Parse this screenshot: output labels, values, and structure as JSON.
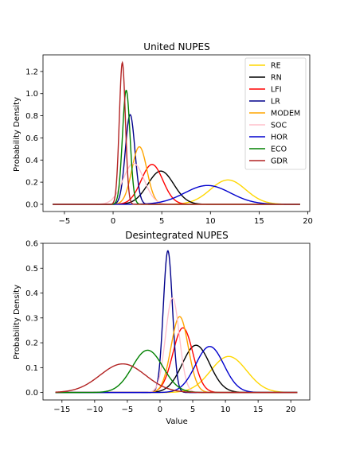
{
  "chart_data": [
    {
      "type": "line",
      "title": "United NUPES",
      "xlabel": "",
      "ylabel": "Probability Density",
      "xlim": [
        -7.2,
        20.2
      ],
      "ylim": [
        -0.065,
        1.35
      ],
      "xticks": [
        -5,
        0,
        5,
        10,
        15,
        20
      ],
      "yticks": [
        0.0,
        0.2,
        0.4,
        0.6,
        0.8,
        1.0,
        1.2
      ],
      "x_range": [
        -6.2,
        19.2
      ],
      "legend": "top-right",
      "series": [
        {
          "name": "RE",
          "color": "#FFD700",
          "mean": 11.8,
          "peak": 0.22
        },
        {
          "name": "RN",
          "color": "#000000",
          "mean": 4.9,
          "peak": 0.3
        },
        {
          "name": "LFI",
          "color": "#FF0000",
          "mean": 4.0,
          "peak": 0.36
        },
        {
          "name": "LR",
          "color": "#00008B",
          "mean": 1.75,
          "peak": 0.81
        },
        {
          "name": "MODEM",
          "color": "#FFA500",
          "mean": 2.7,
          "peak": 0.52
        },
        {
          "name": "SOC",
          "color": "#FFC0CB",
          "mean": 2.1,
          "peak": 0.37
        },
        {
          "name": "HOR",
          "color": "#0000CD",
          "mean": 9.7,
          "peak": 0.17
        },
        {
          "name": "ECO",
          "color": "#008000",
          "mean": 1.35,
          "peak": 1.03
        },
        {
          "name": "GDR",
          "color": "#B22222",
          "mean": 0.95,
          "peak": 1.28
        }
      ]
    },
    {
      "type": "line",
      "title": "Desintegrated NUPES",
      "xlabel": "Value",
      "ylabel": "Probability Density",
      "xlim": [
        -17.9,
        22.9
      ],
      "ylim": [
        -0.03,
        0.6
      ],
      "xticks": [
        -15,
        -10,
        -5,
        0,
        5,
        10,
        15,
        20
      ],
      "yticks": [
        0.0,
        0.1,
        0.2,
        0.3,
        0.4,
        0.5,
        0.6
      ],
      "x_range": [
        -16,
        21
      ],
      "legend": "none",
      "series": [
        {
          "name": "RE",
          "color": "#FFD700",
          "mean": 10.5,
          "peak": 0.145
        },
        {
          "name": "RN",
          "color": "#000000",
          "mean": 5.5,
          "peak": 0.19
        },
        {
          "name": "LFI",
          "color": "#FF0000",
          "mean": 3.5,
          "peak": 0.26
        },
        {
          "name": "LR",
          "color": "#00008B",
          "mean": 1.2,
          "peak": 0.57
        },
        {
          "name": "MODEM",
          "color": "#FFA500",
          "mean": 3.0,
          "peak": 0.305
        },
        {
          "name": "SOC",
          "color": "#FFC0CB",
          "mean": 1.9,
          "peak": 0.38
        },
        {
          "name": "HOR",
          "color": "#0000CD",
          "mean": 7.6,
          "peak": 0.185
        },
        {
          "name": "ECO",
          "color": "#008000",
          "mean": -1.9,
          "peak": 0.17
        },
        {
          "name": "GDR",
          "color": "#B22222",
          "mean": -5.7,
          "peak": 0.115
        }
      ]
    }
  ]
}
